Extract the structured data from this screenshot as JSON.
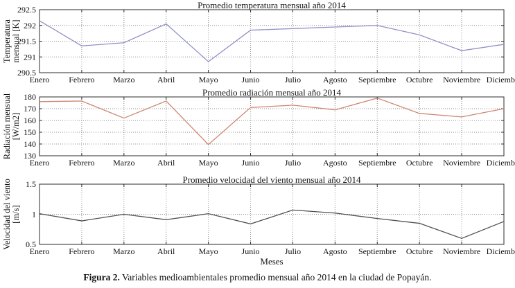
{
  "figure": {
    "caption_label": "Figura 2.",
    "caption_text": " Variables medioambientales promedio mensual año 2014 en la ciudad de Popayán."
  },
  "chart_data": [
    {
      "type": "line",
      "title": "Promedio temperatura mensual año 2014",
      "ylabel": "Temperatura mensual [K]",
      "ylabel_lines": [
        "Temperatura",
        "mensual [K]"
      ],
      "xlabel": "",
      "categories": [
        "Enero",
        "Febrero",
        "Marzo",
        "Abril",
        "Mayo",
        "Junio",
        "Julio",
        "Agosto",
        "Septiembre",
        "Octubre",
        "Noviembre",
        "Diciembre"
      ],
      "values": [
        292.15,
        291.35,
        291.45,
        292.05,
        290.85,
        291.85,
        291.9,
        291.95,
        292.0,
        291.7,
        291.2,
        291.4
      ],
      "ylim": [
        290.5,
        292.5
      ],
      "yticks": [
        290.5,
        291,
        291.5,
        292,
        292.5
      ],
      "ytick_labels": [
        "290.5",
        "291",
        "291.5",
        "292",
        "292.5"
      ],
      "line_color": "#9191c8",
      "grid": "on",
      "legend": "none"
    },
    {
      "type": "line",
      "title": "Promedio radiación mensual año 2014",
      "ylabel": "Radiación mensual [W/m2]",
      "ylabel_lines": [
        "Radiación mensual",
        "[W/m2]"
      ],
      "xlabel": "",
      "categories": [
        "Enero",
        "Febrero",
        "Marzo",
        "Abril",
        "Mayo",
        "Junio",
        "Julio",
        "Agosto",
        "Septiembre",
        "Octubre",
        "Noviembre",
        "Diciembre"
      ],
      "values": [
        176,
        176.5,
        162,
        176.5,
        139.5,
        171,
        173,
        169,
        179,
        166,
        163,
        170
      ],
      "ylim": [
        130,
        180
      ],
      "yticks": [
        130,
        140,
        150,
        160,
        170,
        180
      ],
      "ytick_labels": [
        "130",
        "140",
        "150",
        "160",
        "170",
        "180"
      ],
      "line_color": "#cd8772",
      "grid": "on",
      "legend": "none"
    },
    {
      "type": "line",
      "title": "Promedio velocidad del viento mensual año 2014",
      "ylabel": "Velocidad del viento [m/s]",
      "ylabel_lines": [
        "Velocidad del viento",
        "[m/s]"
      ],
      "xlabel": "Meses",
      "categories": [
        "Enero",
        "Febrero",
        "Marzo",
        "Abril",
        "Mayo",
        "Junio",
        "Julio",
        "Agosto",
        "Septiembre",
        "Octubre",
        "Noviembre",
        "Diciembre"
      ],
      "values": [
        1.01,
        0.89,
        1.0,
        0.91,
        1.01,
        0.84,
        1.07,
        1.02,
        0.93,
        0.85,
        0.6,
        0.88
      ],
      "ylim": [
        0.5,
        1.5
      ],
      "yticks": [
        0.5,
        1,
        1.5
      ],
      "ytick_labels": [
        "0.5",
        "1",
        "1.5"
      ],
      "line_color": "#4f4f4f",
      "grid": "on",
      "legend": "none"
    }
  ]
}
